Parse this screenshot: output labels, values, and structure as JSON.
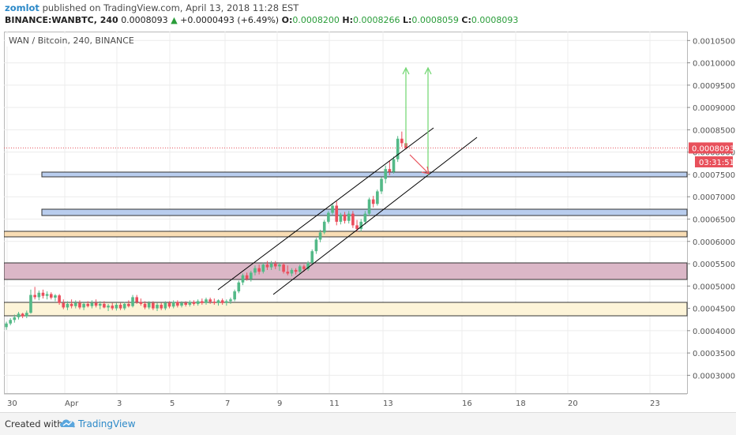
{
  "header": {
    "author": "zomlot",
    "published_text": "published on TradingView.com, April 13, 2018 11:28 EST",
    "symbol": "BINANCE:WANBTC, 240",
    "last": "0.0008093",
    "change": "+0.0000493 (+6.49%)",
    "open_label": "O:",
    "open": "0.0008200",
    "high_label": "H:",
    "high": "0.0008266",
    "low_label": "L:",
    "low": "0.0008059",
    "close_label": "C:",
    "close": "0.0008093"
  },
  "chart": {
    "title": "WAN / Bitcoin, 240, BINANCE",
    "price_ticks": [
      "0.0010500",
      "0.0010000",
      "0.0009500",
      "0.0009000",
      "0.0008500",
      "0.0008000",
      "0.0007500",
      "0.0007000",
      "0.0006500",
      "0.0006000",
      "0.0005500",
      "0.0005000",
      "0.0004500",
      "0.0004000",
      "0.0003500",
      "0.0003000"
    ],
    "last_price_label": "0.0008093",
    "countdown_label": "03:31:51",
    "date_ticks": [
      "30",
      "Apr",
      "3",
      "5",
      "7",
      "9",
      "11",
      "13",
      "16",
      "18",
      "20",
      "23"
    ]
  },
  "chart_data": {
    "type": "candlestick",
    "title": "WAN / Bitcoin, 240, BINANCE",
    "ylim": [
      0.00026,
      0.00107
    ],
    "last_price": 0.0008093,
    "colors": {
      "up": "#53b987",
      "down": "#eb4d5c",
      "channel": "#000000",
      "target_arrow": "#6ed66e",
      "pullback_arrow": "#e8505b"
    },
    "candles": [
      [
        0.000408,
        0.00042,
        0.000402,
        0.000416
      ],
      [
        0.000416,
        0.000428,
        0.000412,
        0.000424
      ],
      [
        0.000424,
        0.000436,
        0.000418,
        0.00043
      ],
      [
        0.00043,
        0.000442,
        0.000425,
        0.000438
      ],
      [
        0.000438,
        0.00044,
        0.000428,
        0.000432
      ],
      [
        0.000432,
        0.000445,
        0.000428,
        0.00044
      ],
      [
        0.00044,
        0.000492,
        0.000438,
        0.00048
      ],
      [
        0.00048,
        0.000498,
        0.00047,
        0.000475
      ],
      [
        0.000475,
        0.00049,
        0.000468,
        0.000485
      ],
      [
        0.000485,
        0.000492,
        0.000472,
        0.000478
      ],
      [
        0.000478,
        0.000488,
        0.00047,
        0.000482
      ],
      [
        0.000482,
        0.000486,
        0.00047,
        0.000474
      ],
      [
        0.000474,
        0.000482,
        0.000466,
        0.000479
      ],
      [
        0.000479,
        0.000482,
        0.000458,
        0.000462
      ],
      [
        0.000462,
        0.00047,
        0.000448,
        0.000452
      ],
      [
        0.000452,
        0.000466,
        0.000446,
        0.00046
      ],
      [
        0.00046,
        0.00047,
        0.00045,
        0.000455
      ],
      [
        0.000455,
        0.000468,
        0.00045,
        0.000462
      ],
      [
        0.000462,
        0.000468,
        0.000448,
        0.000452
      ],
      [
        0.000452,
        0.000465,
        0.000446,
        0.00046
      ],
      [
        0.00046,
        0.000466,
        0.000452,
        0.000455
      ],
      [
        0.000455,
        0.000468,
        0.00045,
        0.000462
      ],
      [
        0.000462,
        0.00047,
        0.000452,
        0.000456
      ],
      [
        0.000456,
        0.000466,
        0.000448,
        0.00046
      ],
      [
        0.00046,
        0.000466,
        0.00045,
        0.000452
      ],
      [
        0.000452,
        0.00046,
        0.000444,
        0.000456
      ],
      [
        0.000456,
        0.000462,
        0.000446,
        0.00045
      ],
      [
        0.00045,
        0.000462,
        0.000445,
        0.000458
      ],
      [
        0.000458,
        0.000462,
        0.000446,
        0.00045
      ],
      [
        0.00045,
        0.000464,
        0.000446,
        0.00046
      ],
      [
        0.00046,
        0.000468,
        0.000452,
        0.000455
      ],
      [
        0.000455,
        0.00048,
        0.000452,
        0.000475
      ],
      [
        0.000475,
        0.00048,
        0.00046,
        0.000464
      ],
      [
        0.000464,
        0.000472,
        0.000456,
        0.00046
      ],
      [
        0.00046,
        0.000466,
        0.000448,
        0.000452
      ],
      [
        0.000452,
        0.000466,
        0.000448,
        0.000462
      ],
      [
        0.000462,
        0.000466,
        0.000446,
        0.00045
      ],
      [
        0.00045,
        0.000462,
        0.000444,
        0.000458
      ],
      [
        0.000458,
        0.000462,
        0.000446,
        0.00045
      ],
      [
        0.00045,
        0.000466,
        0.000446,
        0.000462
      ],
      [
        0.000462,
        0.000466,
        0.00045,
        0.000454
      ],
      [
        0.000454,
        0.000468,
        0.00045,
        0.000464
      ],
      [
        0.000464,
        0.000468,
        0.000452,
        0.000456
      ],
      [
        0.000456,
        0.000466,
        0.000452,
        0.000462
      ],
      [
        0.000462,
        0.000466,
        0.000454,
        0.000458
      ],
      [
        0.000458,
        0.000468,
        0.000454,
        0.000464
      ],
      [
        0.000464,
        0.000468,
        0.000456,
        0.00046
      ],
      [
        0.00046,
        0.00047,
        0.000456,
        0.000466
      ],
      [
        0.000466,
        0.000472,
        0.000458,
        0.000462
      ],
      [
        0.000462,
        0.000474,
        0.000458,
        0.00047
      ],
      [
        0.00047,
        0.000474,
        0.00046,
        0.000465
      ],
      [
        0.000465,
        0.000472,
        0.000458,
        0.000462
      ],
      [
        0.000462,
        0.00047,
        0.000456,
        0.000468
      ],
      [
        0.000468,
        0.000472,
        0.000458,
        0.000462
      ],
      [
        0.000462,
        0.00047,
        0.000456,
        0.000466
      ],
      [
        0.000466,
        0.000474,
        0.00046,
        0.00047
      ],
      [
        0.00047,
        0.000492,
        0.000466,
        0.000488
      ],
      [
        0.000488,
        0.000512,
        0.000484,
        0.000508
      ],
      [
        0.000508,
        0.000528,
        0.000502,
        0.000524
      ],
      [
        0.000524,
        0.00053,
        0.000512,
        0.000516
      ],
      [
        0.000516,
        0.000534,
        0.00051,
        0.00053
      ],
      [
        0.00053,
        0.000546,
        0.000524,
        0.00054
      ],
      [
        0.00054,
        0.000548,
        0.000526,
        0.000532
      ],
      [
        0.000532,
        0.000552,
        0.000528,
        0.000548
      ],
      [
        0.000548,
        0.000556,
        0.000536,
        0.000542
      ],
      [
        0.000542,
        0.000556,
        0.000536,
        0.00055
      ],
      [
        0.00055,
        0.000556,
        0.000538,
        0.000544
      ],
      [
        0.000544,
        0.000552,
        0.000534,
        0.000548
      ],
      [
        0.000548,
        0.000552,
        0.000528,
        0.000532
      ],
      [
        0.000532,
        0.000546,
        0.000524,
        0.000528
      ],
      [
        0.000528,
        0.00054,
        0.000522,
        0.000536
      ],
      [
        0.000536,
        0.00054,
        0.000526,
        0.000532
      ],
      [
        0.000532,
        0.000548,
        0.000528,
        0.000544
      ],
      [
        0.000544,
        0.000548,
        0.000532,
        0.000538
      ],
      [
        0.000538,
        0.000556,
        0.000534,
        0.000552
      ],
      [
        0.000552,
        0.000582,
        0.000548,
        0.000578
      ],
      [
        0.000578,
        0.000608,
        0.000572,
        0.000604
      ],
      [
        0.000604,
        0.000626,
        0.000598,
        0.00062
      ],
      [
        0.00062,
        0.000648,
        0.000616,
        0.000644
      ],
      [
        0.000644,
        0.000668,
        0.00064,
        0.000664
      ],
      [
        0.000664,
        0.000686,
        0.00066,
        0.00068
      ],
      [
        0.00068,
        0.00069,
        0.000636,
        0.000644
      ],
      [
        0.000644,
        0.000664,
        0.000638,
        0.00066
      ],
      [
        0.00066,
        0.000666,
        0.00064,
        0.000646
      ],
      [
        0.000646,
        0.000668,
        0.00064,
        0.000662
      ],
      [
        0.000662,
        0.000668,
        0.00063,
        0.000636
      ],
      [
        0.000636,
        0.000648,
        0.000622,
        0.000628
      ],
      [
        0.000628,
        0.00065,
        0.000622,
        0.000644
      ],
      [
        0.000644,
        0.000668,
        0.000638,
        0.000662
      ],
      [
        0.000662,
        0.000698,
        0.000658,
        0.000694
      ],
      [
        0.000694,
        0.000702,
        0.000676,
        0.000684
      ],
      [
        0.000684,
        0.000716,
        0.00068,
        0.000712
      ],
      [
        0.000712,
        0.000744,
        0.000706,
        0.00074
      ],
      [
        0.00074,
        0.00077,
        0.00073,
        0.000762
      ],
      [
        0.000762,
        0.00078,
        0.000748,
        0.000756
      ],
      [
        0.000756,
        0.00079,
        0.000752,
        0.000784
      ],
      [
        0.000784,
        0.000836,
        0.000778,
        0.00083
      ],
      [
        0.00083,
        0.000846,
        0.000812,
        0.00082
      ],
      [
        0.00082,
        0.000827,
        0.000806,
        0.000809
      ]
    ]
  }
}
